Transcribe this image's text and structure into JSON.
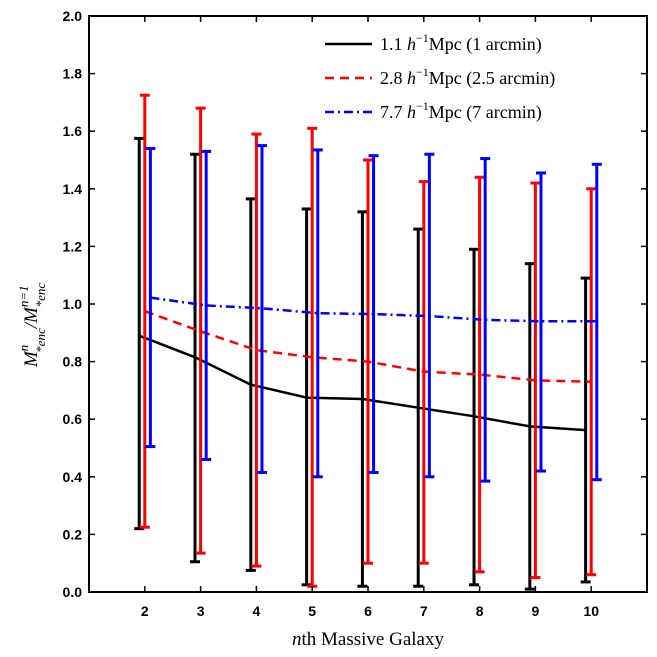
{
  "chart_data": {
    "type": "line",
    "xlabel": "nth Massive Galaxy",
    "xlabel_parts": {
      "italic": "n",
      "rest": "th Massive Galaxy"
    },
    "ylabel": "M^n_{*enc}/M^{n=1}_{*enc}",
    "xlim": [
      1,
      11
    ],
    "ylim": [
      0,
      2
    ],
    "x": [
      2,
      3,
      4,
      5,
      6,
      7,
      8,
      9,
      10
    ],
    "x_ticks": [
      "2",
      "3",
      "4",
      "5",
      "6",
      "7",
      "8",
      "9",
      "10"
    ],
    "y_ticks": [
      "0.0",
      "0.2",
      "0.4",
      "0.6",
      "0.8",
      "1.0",
      "1.2",
      "1.4",
      "1.6",
      "1.8",
      "2.0"
    ],
    "y_tick_values": [
      0,
      0.2,
      0.4,
      0.6,
      0.8,
      1.0,
      1.2,
      1.4,
      1.6,
      1.8,
      2.0
    ],
    "grid": false,
    "legend_position": "top-right",
    "series": [
      {
        "name": "1.1 h^-1 Mpc (1 arcmin)",
        "legend": {
          "value": "1.1",
          "unit": "Mpc (1 arcmin)"
        },
        "color": "#000000",
        "style": "solid",
        "x_offset": -0.1,
        "values": [
          0.89,
          0.815,
          0.72,
          0.675,
          0.67,
          0.64,
          0.61,
          0.575,
          0.562
        ],
        "err_low": [
          0.22,
          0.105,
          0.075,
          0.025,
          0.02,
          0.02,
          0.025,
          0.01,
          0.035
        ],
        "err_high": [
          1.575,
          1.52,
          1.365,
          1.33,
          1.32,
          1.26,
          1.19,
          1.14,
          1.09
        ]
      },
      {
        "name": "2.8 h^-1 Mpc (2.5 arcmin)",
        "legend": {
          "value": "2.8",
          "unit": "Mpc (2.5 arcmin)"
        },
        "color": "#ff0000",
        "style": "dashed",
        "x_offset": 0,
        "values": [
          0.975,
          0.905,
          0.84,
          0.815,
          0.8,
          0.765,
          0.755,
          0.735,
          0.73
        ],
        "err_low": [
          0.225,
          0.135,
          0.09,
          0.02,
          0.1,
          0.1,
          0.07,
          0.05,
          0.06
        ],
        "err_high": [
          1.725,
          1.68,
          1.59,
          1.61,
          1.5,
          1.425,
          1.44,
          1.42,
          1.4
        ]
      },
      {
        "name": "7.7 h^-1 Mpc (7 arcmin)",
        "legend": {
          "value": "7.7",
          "unit": "Mpc (7 arcmin)"
        },
        "color": "#0000ff",
        "style": "dashdot",
        "x_offset": 0.1,
        "values": [
          1.022,
          0.995,
          0.985,
          0.968,
          0.965,
          0.958,
          0.945,
          0.94,
          0.94
        ],
        "err_low": [
          0.505,
          0.46,
          0.415,
          0.4,
          0.415,
          0.4,
          0.385,
          0.42,
          0.39
        ],
        "err_high": [
          1.54,
          1.53,
          1.55,
          1.535,
          1.515,
          1.52,
          1.505,
          1.455,
          1.485
        ]
      }
    ]
  }
}
